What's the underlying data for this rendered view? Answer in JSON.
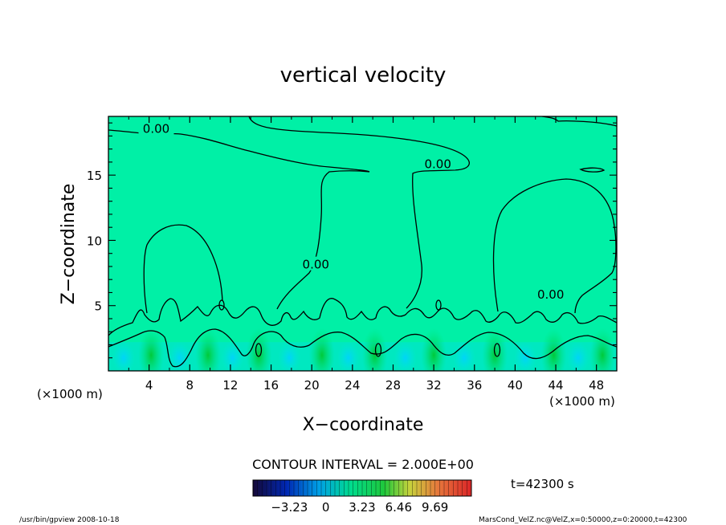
{
  "chart_data": {
    "type": "heatmap",
    "title": "vertical velocity",
    "xlabel": "X−coordinate",
    "ylabel": "Z−coordinate",
    "x_unit_left": "(×1000 m)",
    "x_unit_right": "(×1000 m)",
    "xlim": [
      0,
      50
    ],
    "ylim": [
      0,
      19.5
    ],
    "x_ticks": [
      4,
      8,
      12,
      16,
      20,
      24,
      28,
      32,
      36,
      40,
      44,
      48
    ],
    "y_ticks": [
      5,
      10,
      15
    ],
    "contour_interval_text": "CONTOUR INTERVAL = 2.000E+00",
    "contour_labels": [
      {
        "text": "0.00",
        "x": 4.7,
        "y": 18.6
      },
      {
        "text": "0.00",
        "x": 32.4,
        "y": 15.9
      },
      {
        "text": "0.00",
        "x": 20.4,
        "y": 8.2
      },
      {
        "text": "0.00",
        "x": 43.5,
        "y": 5.9
      }
    ],
    "colorbar_ticks": [
      "−3.23",
      "0",
      "3.23",
      "6.46",
      "9.69"
    ],
    "colorbar_range": [
      -6.46,
      12.92
    ],
    "colors": {
      "background": "#00f0a6",
      "low": "#00c8ff",
      "high": "#00c832",
      "contour": "#000000"
    },
    "time_label": "t=42300 s",
    "footer_left": "/usr/bin/gpview 2008-10-18",
    "footer_right": "MarsCond_VelZ.nc@VelZ,x=0:50000,z=0:20000,t=42300"
  }
}
